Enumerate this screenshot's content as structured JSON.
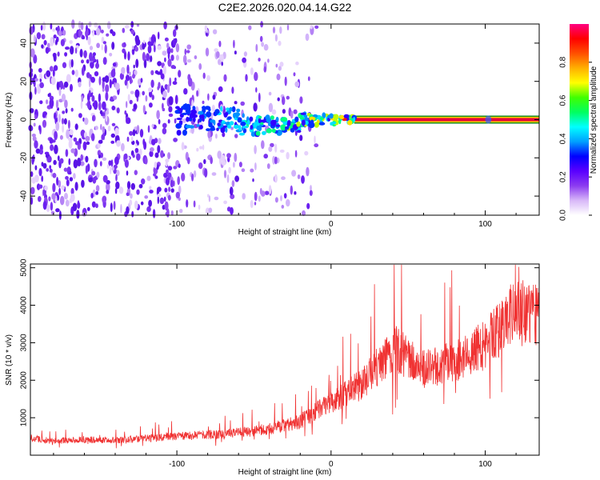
{
  "title": "C2E2.2026.020.04.14.G22",
  "chart_data": [
    {
      "type": "heatmap",
      "xlabel": "Height of straight line (km)",
      "ylabel": "Frequency (Hz)",
      "xlim": [
        -195,
        135
      ],
      "ylim": [
        -50,
        50
      ],
      "xticks": [
        -100,
        0,
        100
      ],
      "yticks": [
        -40,
        -20,
        0,
        20,
        40
      ],
      "colorbar": {
        "label": "Normalized spectral amplitude",
        "range": [
          0,
          1
        ],
        "ticks": [
          0.0,
          0.2,
          0.4,
          0.6,
          0.8
        ],
        "colors": [
          "#ffffff",
          "#d8b8f8",
          "#8c3cf0",
          "#5a00ff",
          "#0000ff",
          "#00a0ff",
          "#00ffff",
          "#00ff60",
          "#40ff00",
          "#ffff00",
          "#ffb000",
          "#ff5000",
          "#ff0000",
          "#ff0080"
        ]
      },
      "signal_band": {
        "x_start": -100,
        "x_end": 135,
        "frequency_center": 0,
        "steady_from_x": 15
      },
      "noise_region": {
        "x_start": -195,
        "x_end": -20
      }
    },
    {
      "type": "line",
      "xlabel": "Height of straight line (km)",
      "ylabel": "SNR (10 * v/v)",
      "xlim": [
        -195,
        135
      ],
      "ylim": [
        0,
        5100
      ],
      "xticks": [
        -100,
        0,
        100
      ],
      "yticks": [
        1000,
        2000,
        3000,
        4000,
        5000
      ],
      "color": "#f03232",
      "trend": {
        "x": [
          -195,
          -180,
          -160,
          -140,
          -120,
          -100,
          -80,
          -60,
          -40,
          -20,
          0,
          20,
          35,
          40,
          60,
          80,
          100,
          110,
          120,
          130,
          135
        ],
        "y": [
          450,
          380,
          420,
          400,
          450,
          500,
          550,
          600,
          700,
          900,
          1400,
          1900,
          2600,
          2900,
          2300,
          2500,
          3000,
          3400,
          3900,
          3800,
          3700
        ]
      }
    }
  ]
}
